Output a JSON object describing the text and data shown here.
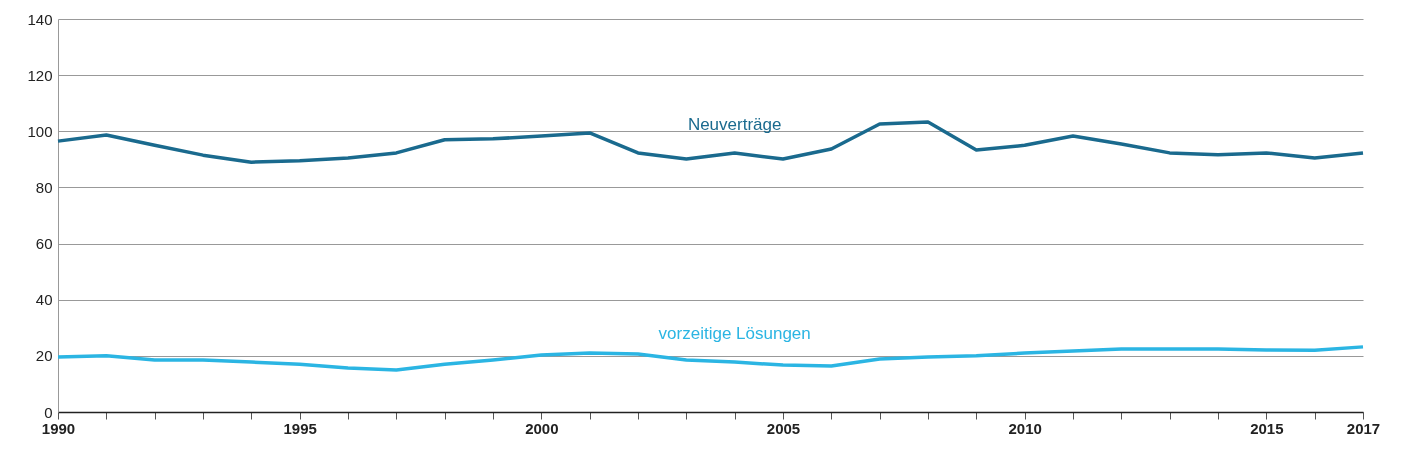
{
  "chart_data": {
    "type": "line",
    "x": [
      1990,
      1991,
      1992,
      1993,
      1994,
      1995,
      1996,
      1997,
      1998,
      1999,
      2000,
      2001,
      2002,
      2003,
      2004,
      2005,
      2006,
      2007,
      2008,
      2009,
      2010,
      2011,
      2012,
      2013,
      2014,
      2015,
      2016,
      2017
    ],
    "series": [
      {
        "name": "Neuverträge",
        "color": "#1a6a8e",
        "values": [
          96.5,
          98.7,
          95,
          91.5,
          89,
          89.5,
          90.5,
          92.3,
          97,
          97.3,
          98.3,
          99.4,
          92.3,
          90.1,
          92.3,
          90.1,
          93.7,
          102.6,
          103.3,
          93.3,
          95,
          98.3,
          95.5,
          92.3,
          91.6,
          92.3,
          90.5,
          92.3
        ]
      },
      {
        "name": "vorzeitige Lösungen",
        "color": "#2bb5e3",
        "values": [
          19.6,
          20,
          18.5,
          18.5,
          17.8,
          17,
          15.7,
          15,
          17,
          18.5,
          20.3,
          21,
          20.7,
          18.5,
          17.8,
          16.7,
          16.4,
          18.9,
          19.6,
          20,
          21,
          21.7,
          22.4,
          22.4,
          22.4,
          22.1,
          22,
          23.2
        ]
      }
    ],
    "xlim": [
      1990,
      2017
    ],
    "xticks": [
      1990,
      {
        "value": 1991,
        "label": null
      },
      {
        "value": 1992,
        "label": null
      },
      {
        "value": 1993,
        "label": null
      },
      {
        "value": 1994,
        "label": null
      },
      1995,
      {
        "value": 1996,
        "label": null
      },
      {
        "value": 1997,
        "label": null
      },
      {
        "value": 1998,
        "label": null
      },
      {
        "value": 1999,
        "label": null
      },
      2000,
      {
        "value": 2001,
        "label": null
      },
      {
        "value": 2002,
        "label": null
      },
      {
        "value": 2003,
        "label": null
      },
      {
        "value": 2004,
        "label": null
      },
      2005,
      {
        "value": 2006,
        "label": null
      },
      {
        "value": 2007,
        "label": null
      },
      {
        "value": 2008,
        "label": null
      },
      {
        "value": 2009,
        "label": null
      },
      2010,
      {
        "value": 2011,
        "label": null
      },
      {
        "value": 2012,
        "label": null
      },
      {
        "value": 2013,
        "label": null
      },
      {
        "value": 2014,
        "label": null
      },
      2015,
      {
        "value": 2016,
        "label": null
      },
      2017
    ],
    "ylim": [
      0,
      140
    ],
    "yticks": [
      0,
      20,
      40,
      60,
      80,
      100,
      120,
      140
    ],
    "grid": "y",
    "legend": false,
    "marker": "none",
    "line_style": "solid"
  }
}
